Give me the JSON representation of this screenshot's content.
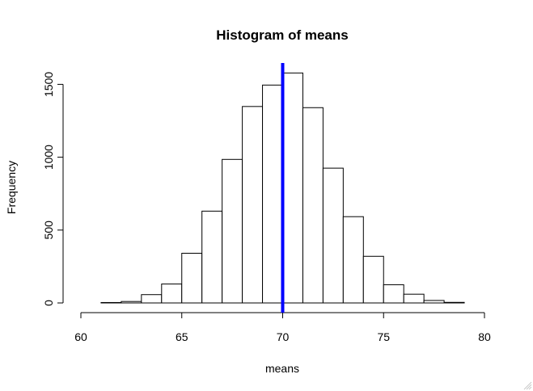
{
  "chart_data": {
    "type": "bar",
    "title": "Histogram of means",
    "xlabel": "means",
    "ylabel": "Frequency",
    "xlim": [
      60,
      80
    ],
    "ylim": [
      0,
      1650
    ],
    "x_ticks": [
      60,
      65,
      70,
      75,
      80
    ],
    "y_ticks": [
      0,
      500,
      1000,
      1500
    ],
    "bin_width": 1,
    "bins": [
      {
        "start": 61,
        "end": 62,
        "count": 3
      },
      {
        "start": 62,
        "end": 63,
        "count": 10
      },
      {
        "start": 63,
        "end": 64,
        "count": 57
      },
      {
        "start": 64,
        "end": 65,
        "count": 130
      },
      {
        "start": 65,
        "end": 66,
        "count": 341
      },
      {
        "start": 66,
        "end": 67,
        "count": 630
      },
      {
        "start": 67,
        "end": 68,
        "count": 985
      },
      {
        "start": 68,
        "end": 69,
        "count": 1348
      },
      {
        "start": 69,
        "end": 70,
        "count": 1495
      },
      {
        "start": 70,
        "end": 71,
        "count": 1578
      },
      {
        "start": 71,
        "end": 72,
        "count": 1340
      },
      {
        "start": 72,
        "end": 73,
        "count": 925
      },
      {
        "start": 73,
        "end": 74,
        "count": 592
      },
      {
        "start": 74,
        "end": 75,
        "count": 320
      },
      {
        "start": 75,
        "end": 76,
        "count": 125
      },
      {
        "start": 76,
        "end": 77,
        "count": 60
      },
      {
        "start": 77,
        "end": 78,
        "count": 17
      },
      {
        "start": 78,
        "end": 79,
        "count": 4
      }
    ],
    "reference_line": {
      "x": 70,
      "color": "#0000ff"
    },
    "bar_fill": "#ffffff",
    "bar_stroke": "#000000",
    "grid": false
  }
}
